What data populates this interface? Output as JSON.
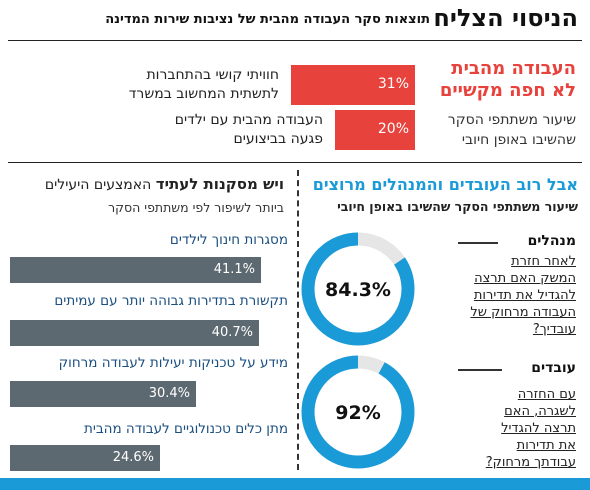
{
  "header": {
    "title": "הניסוי הצליח",
    "subtitle": "תוצאות סקר העבודה מהבית של נציבות שירות המדינה"
  },
  "top": {
    "title_line1": "העבודה מהבית",
    "title_line2": "לא חפה מקשיים",
    "note_line1": "שיעור משתתפי הסקר",
    "note_line2": "שהשיבו באופן חיובי"
  },
  "bottom_right": {
    "title": "אבל רוב העובדים והמנהלים מרוצים",
    "subtitle": "שיעור משתתפי הסקר שהשיבו באופן חיובי",
    "managers": {
      "head": "מנהלים",
      "q1": "לאחר חזרת",
      "q2": "המשק האם תרצה",
      "q3": "להגדיל את תדירות",
      "q4": "העבודה מרחוק של",
      "q5": "עובדיך?"
    },
    "workers": {
      "head": "עובדים",
      "q1": "עם החזרה",
      "q2": "לשגרה, האם",
      "q3": "תרצה להגדיל",
      "q4": "את תדירות",
      "q5": "עבודתך מרחוק?"
    }
  },
  "bottom_left": {
    "title_bold": "ויש מסקנות לעתיד",
    "title_rest": "האמצעים היעילים",
    "subtitle": "ביותר לשיפור לפי משתתפי הסקר"
  },
  "colors": {
    "red": "#e8423c",
    "blue": "#1a9ad6",
    "gray": "#5d6970",
    "track": "#e6e6e6"
  },
  "chart_data": [
    {
      "type": "bar",
      "orientation": "horizontal",
      "categories": [
        "חוויתי קושי בהתחברות לתשתית המחשוב במשרד",
        "העבודה מהבית עם ילדים פגעה בביצועים"
      ],
      "label_lines": [
        [
          "חוויתי קושי בהתחברות",
          "לתשתית המחשוב במשרד"
        ],
        [
          "העבודה מהבית עם ילדים",
          "פגעה בביצועים"
        ]
      ],
      "values": [
        31,
        20
      ],
      "value_labels": [
        "31%",
        "20%"
      ],
      "xlim": [
        0,
        100
      ]
    },
    {
      "type": "pie",
      "style": "donut",
      "labels": [
        "מנהלים"
      ],
      "values": [
        84.3
      ],
      "value_labels": [
        "84.3%"
      ],
      "max": 100
    },
    {
      "type": "pie",
      "style": "donut",
      "labels": [
        "עובדים"
      ],
      "values": [
        92
      ],
      "value_labels": [
        "92%"
      ],
      "max": 100
    },
    {
      "type": "bar",
      "orientation": "horizontal",
      "categories": [
        "מסגרות חינוך לילדים",
        "תקשורת בתדירות גבוהה יותר עם עמיתים",
        "מידע על טכניקות יעילות לעבודה מרחוק",
        "מתן כלים טכנולוגיים לעבודה מהבית"
      ],
      "values": [
        41.1,
        40.7,
        30.4,
        24.6
      ],
      "value_labels": [
        "41.1%",
        "40.7%",
        "30.4%",
        "24.6%"
      ],
      "xlim": [
        0,
        45
      ]
    }
  ]
}
